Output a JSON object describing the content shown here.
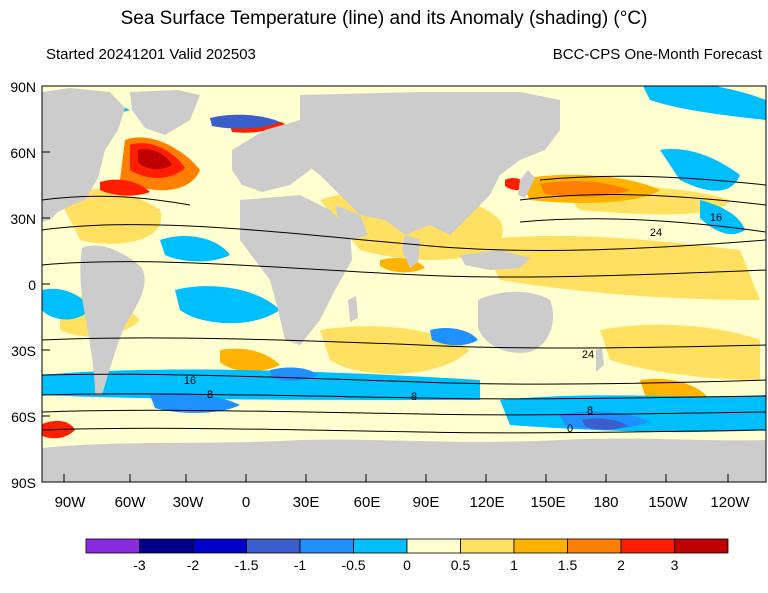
{
  "title": "Sea Surface Temperature (line) and its Anomaly (shading) (°C)",
  "subtitle_left": "Started 20241201  Valid 202503",
  "subtitle_right": "BCC-CPS One-Month Forecast",
  "lat_labels": [
    "90N",
    "60N",
    "30N",
    "0",
    "30S",
    "60S",
    "90S"
  ],
  "lon_labels": [
    "90W",
    "60W",
    "30W",
    "0",
    "30E",
    "60E",
    "90E",
    "120E",
    "150E",
    "180",
    "150W",
    "120W"
  ],
  "contour_labels": [
    "16",
    "24",
    "24",
    "16",
    "8",
    "8",
    "8",
    "0"
  ],
  "colorbar": {
    "labels": [
      "-3",
      "-2",
      "-1.5",
      "-1",
      "-0.5",
      "0",
      "0.5",
      "1",
      "1.5",
      "2",
      "3"
    ],
    "colors": [
      "#8a2be2",
      "#00008b",
      "#0000cd",
      "#3a5fcd",
      "#1e90ff",
      "#00bfff",
      "#ffffd0",
      "#ffe060",
      "#ffb300",
      "#ff7f00",
      "#ff1f00",
      "#c00000"
    ]
  },
  "colors": {
    "land": "#cccccc",
    "ocean_neutral": "#ffffd0"
  }
}
